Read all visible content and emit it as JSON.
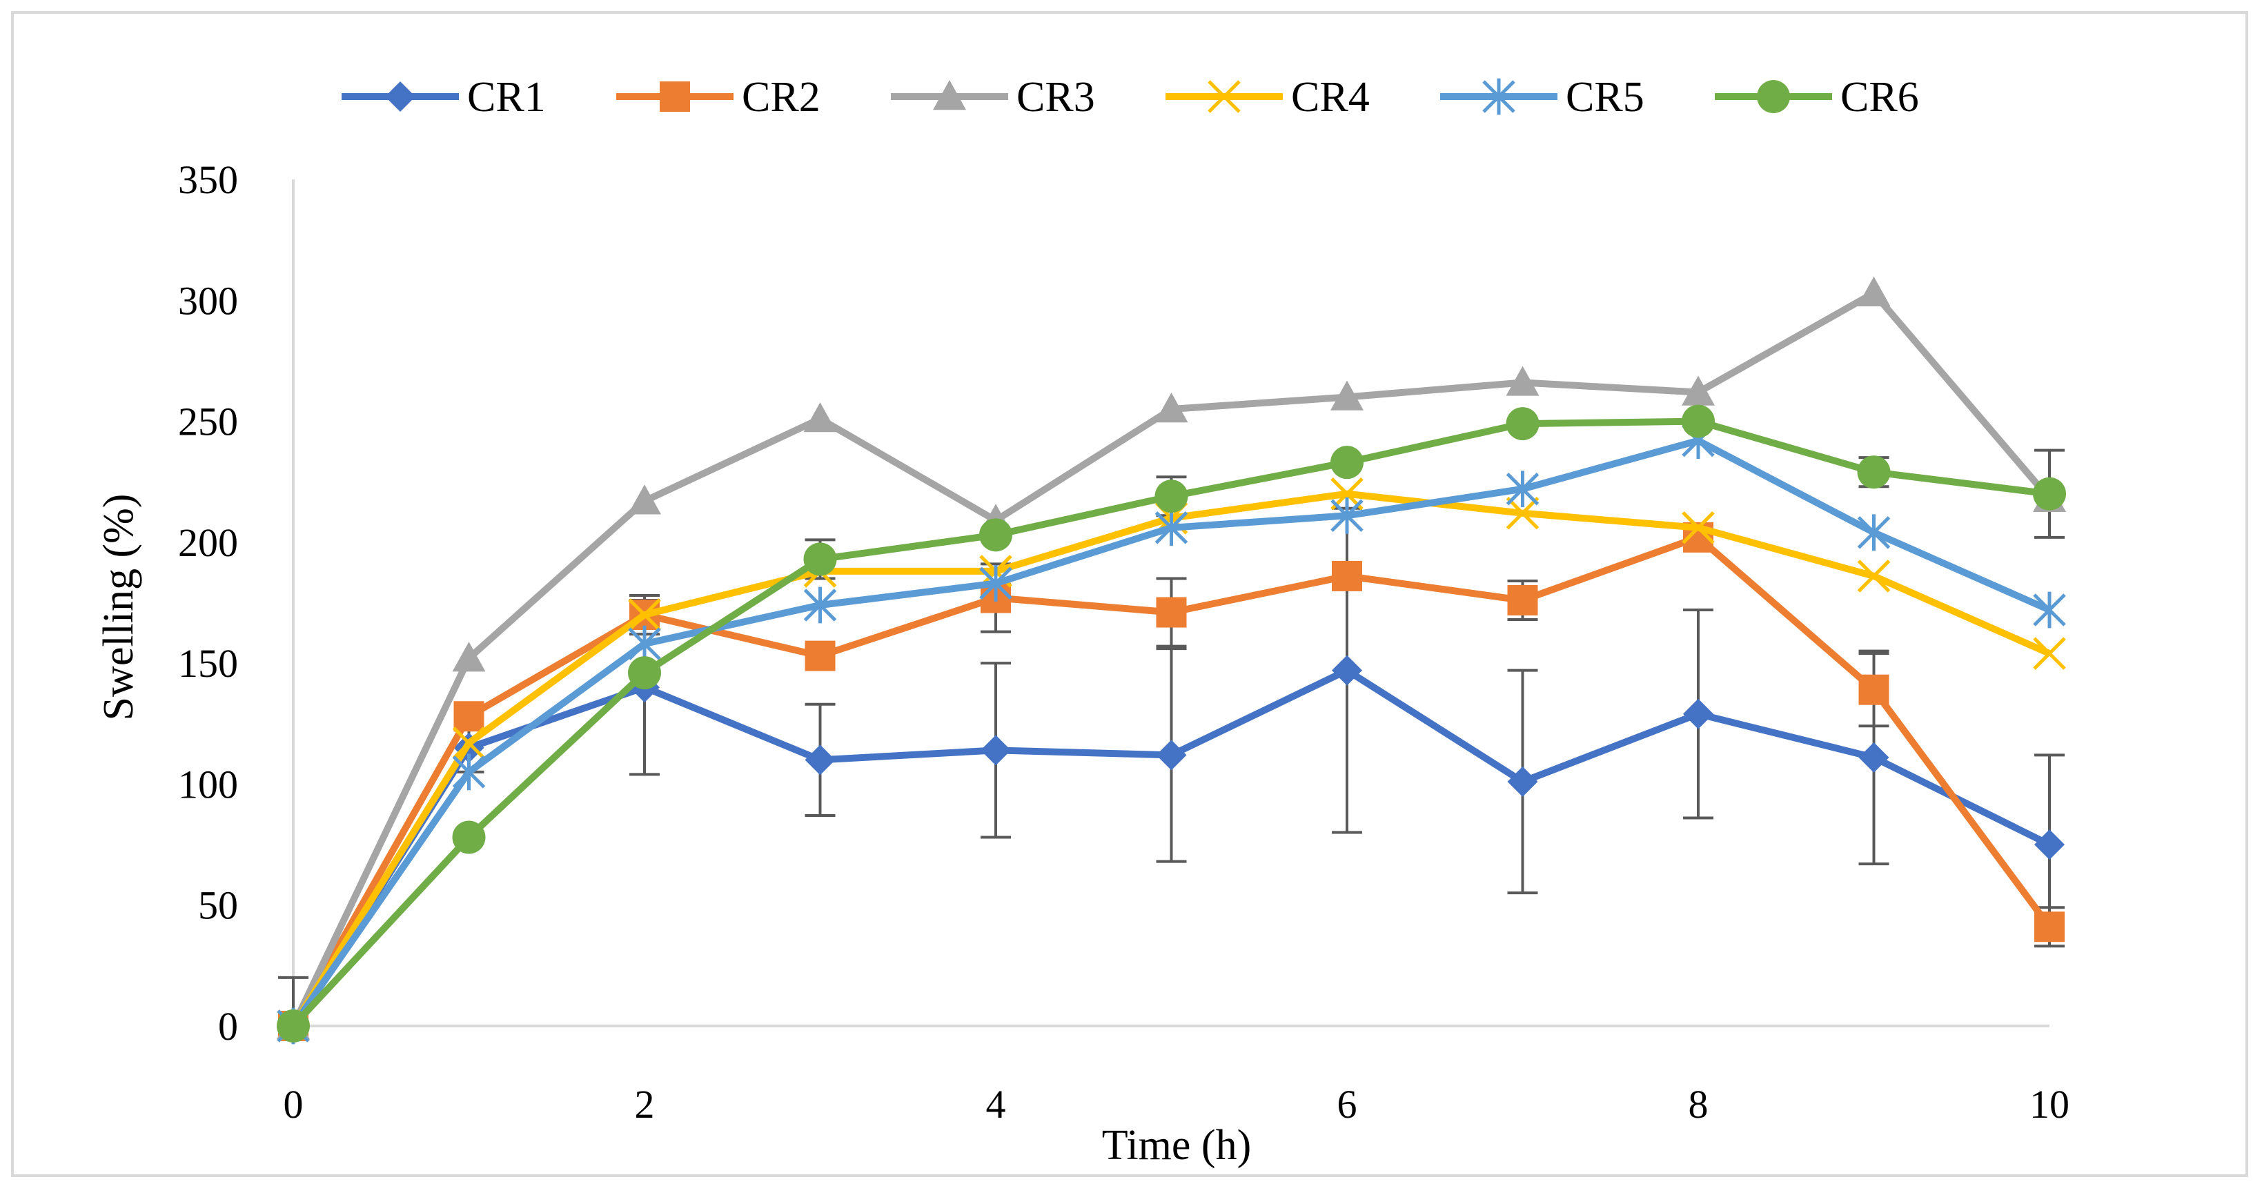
{
  "chart_data": {
    "type": "line",
    "title": "",
    "xlabel": "Time (h)",
    "ylabel": "Swelling (%)",
    "xlim": [
      0,
      10
    ],
    "ylim": [
      0,
      350
    ],
    "x_ticks": [
      0,
      2,
      4,
      6,
      8,
      10
    ],
    "y_ticks": [
      0,
      50,
      100,
      150,
      200,
      250,
      300,
      350
    ],
    "grid": false,
    "legend_position": "top",
    "x": [
      0,
      1,
      2,
      3,
      4,
      5,
      6,
      7,
      8,
      9,
      10
    ],
    "series": [
      {
        "name": "CR1",
        "color": "#4472c4",
        "marker": "diamond",
        "values": [
          0,
          115,
          140,
          110,
          114,
          112,
          147,
          101,
          129,
          111,
          75
        ],
        "error": [
          20,
          10,
          36,
          23,
          36,
          44,
          67,
          46,
          43,
          44,
          37
        ]
      },
      {
        "name": "CR2",
        "color": "#ed7d31",
        "marker": "square",
        "values": [
          0,
          128,
          170,
          153,
          177,
          171,
          186,
          176,
          202,
          139,
          41
        ],
        "error": [
          0,
          0,
          8,
          0,
          14,
          14,
          0,
          8,
          0,
          15,
          8
        ]
      },
      {
        "name": "CR3",
        "color": "#a5a5a5",
        "marker": "triangle",
        "values": [
          0,
          152,
          217,
          251,
          209,
          255,
          260,
          266,
          262,
          303,
          218
        ],
        "error": [
          0,
          0,
          0,
          0,
          0,
          0,
          0,
          0,
          0,
          0,
          0
        ]
      },
      {
        "name": "CR4",
        "color": "#ffc000",
        "marker": "x",
        "values": [
          0,
          117,
          170,
          188,
          188,
          210,
          220,
          212,
          206,
          186,
          154
        ],
        "error": [
          0,
          0,
          0,
          0,
          0,
          0,
          0,
          0,
          0,
          0,
          0
        ]
      },
      {
        "name": "CR5",
        "color": "#5b9bd5",
        "marker": "star",
        "values": [
          0,
          105,
          158,
          174,
          183,
          206,
          211,
          222,
          242,
          204,
          172
        ],
        "error": [
          0,
          0,
          0,
          0,
          0,
          0,
          0,
          0,
          0,
          0,
          0
        ]
      },
      {
        "name": "CR6",
        "color": "#70ad47",
        "marker": "circle",
        "values": [
          0,
          78,
          146,
          193,
          203,
          219,
          233,
          249,
          250,
          229,
          220
        ],
        "error": [
          0,
          0,
          0,
          8,
          0,
          8,
          0,
          0,
          0,
          6,
          18
        ]
      }
    ],
    "error_bar_color": "#595959"
  }
}
